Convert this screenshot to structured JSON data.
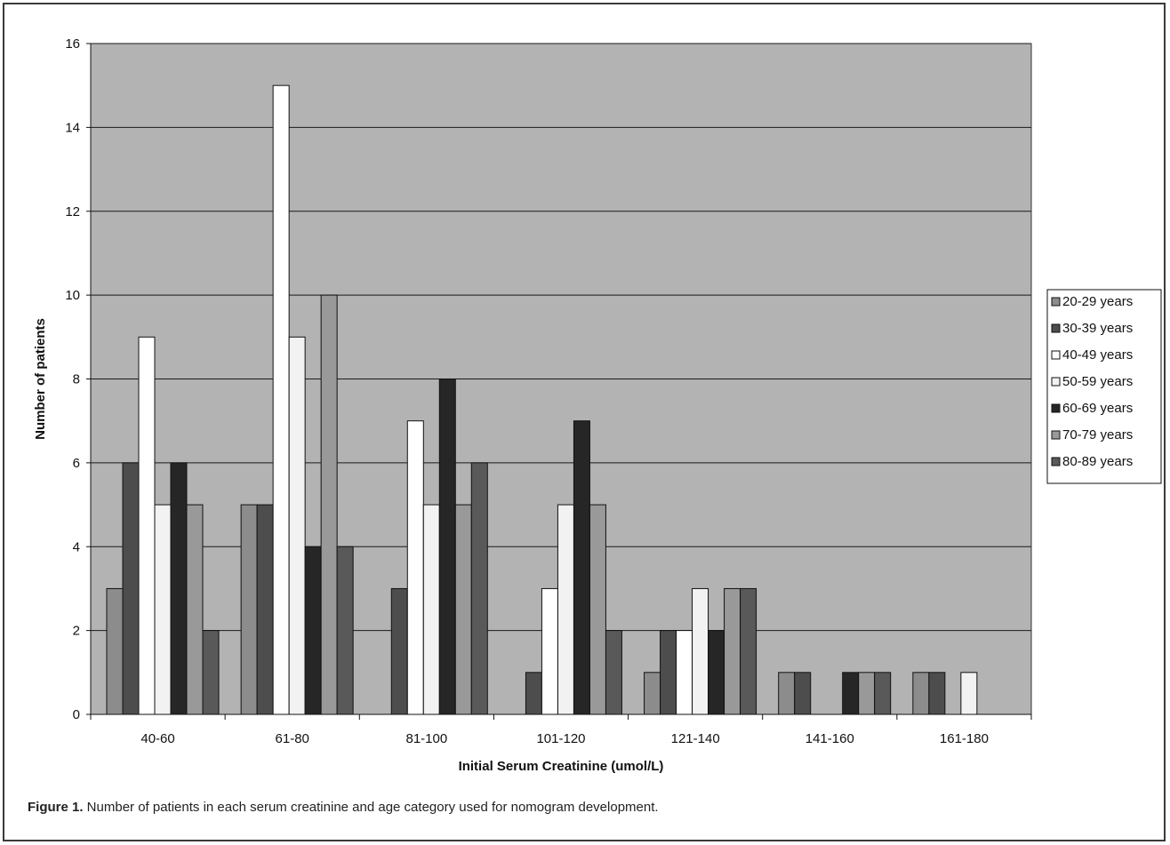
{
  "caption": {
    "label": "Figure 1.",
    "text": " Number of patients in each serum creatinine and age category used for nomogram development."
  },
  "colors": {
    "plot_bg": "#b3b3b3",
    "gridline": "#1a1a1a",
    "bar_stroke": "#111111"
  },
  "chart_data": {
    "type": "bar",
    "title": "",
    "xlabel": "Initial Serum Creatinine (umol/L)",
    "ylabel": "Number of patients",
    "ylim": [
      0,
      16
    ],
    "yticks": [
      0,
      2,
      4,
      6,
      8,
      10,
      12,
      14,
      16
    ],
    "grid": true,
    "legend_position": "right",
    "categories": [
      "40-60",
      "61-80",
      "81-100",
      "101-120",
      "121-140",
      "141-160",
      "161-180"
    ],
    "series": [
      {
        "name": "20-29 years",
        "color": "#8c8c8c",
        "values": [
          3,
          5,
          0,
          0,
          1,
          1,
          1
        ]
      },
      {
        "name": "30-39 years",
        "color": "#4d4d4d",
        "values": [
          6,
          5,
          3,
          1,
          2,
          1,
          1
        ]
      },
      {
        "name": "40-49 years",
        "color": "#ffffff",
        "values": [
          9,
          15,
          7,
          3,
          2,
          0,
          0
        ]
      },
      {
        "name": "50-59 years",
        "color": "#f2f2f2",
        "values": [
          5,
          9,
          5,
          5,
          3,
          0,
          1
        ]
      },
      {
        "name": "60-69 years",
        "color": "#262626",
        "values": [
          6,
          4,
          8,
          7,
          2,
          1,
          0
        ]
      },
      {
        "name": "70-79 years",
        "color": "#999999",
        "values": [
          5,
          10,
          5,
          5,
          3,
          1,
          0
        ]
      },
      {
        "name": "80-89 years",
        "color": "#595959",
        "values": [
          2,
          4,
          6,
          2,
          3,
          1,
          0
        ]
      }
    ]
  }
}
